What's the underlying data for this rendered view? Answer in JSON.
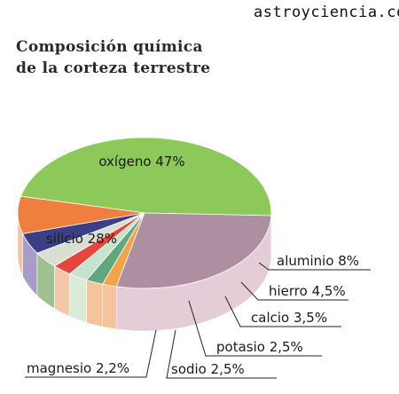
{
  "watermark": "astroyciencia.com",
  "chart_data": {
    "type": "pie",
    "title_lines": [
      "Composición química",
      "de la corteza terrestre"
    ],
    "slices": [
      {
        "label": "oxígeno",
        "value_text": "47%",
        "value": 47,
        "color": "#8dc85b",
        "side": "#6fa543",
        "placement": "inside"
      },
      {
        "label": "aluminio",
        "value_text": "8%",
        "value": 8,
        "color": "#ef7f3e",
        "side": "#f3c4a4",
        "placement": "callout"
      },
      {
        "label": "hierro",
        "value_text": "4,5%",
        "value": 4.5,
        "color": "#3b3f86",
        "side": "#a89cc8",
        "placement": "callout"
      },
      {
        "label": "calcio",
        "value_text": "3,5%",
        "value": 3.5,
        "color": "#d9dfd1",
        "side": "#9fc08f",
        "placement": "callout"
      },
      {
        "label": "potasio",
        "value_text": "2,5%",
        "value": 2.5,
        "color": "#e7453b",
        "side": "#f4c7ab",
        "placement": "callout"
      },
      {
        "label": "sodio",
        "value_text": "2,5%",
        "value": 2.5,
        "color": "#c6e3cd",
        "side": "#d9ead8",
        "placement": "callout"
      },
      {
        "label": "magnesio",
        "value_text": "2,2%",
        "value": 2.2,
        "color": "#5fa77d",
        "side": "#f6c49c",
        "placement": "callout"
      },
      {
        "label": "",
        "value_text": "",
        "value": 1.8,
        "color": "#f4a24a",
        "side": "#f6c49c",
        "placement": "none"
      },
      {
        "label": "silicio",
        "value_text": "28%",
        "value": 28,
        "color": "#ae8fa1",
        "side": "#e4cdd6",
        "placement": "inside"
      }
    ]
  }
}
